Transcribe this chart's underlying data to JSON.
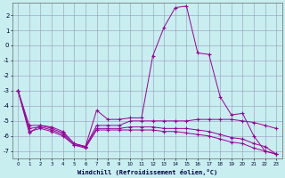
{
  "xlabel": "Windchill (Refroidissement éolien,°C)",
  "background_color": "#c8eef0",
  "grid_color": "#9999bb",
  "line_color": "#990099",
  "xlim": [
    -0.5,
    23.5
  ],
  "ylim": [
    -7.5,
    2.8
  ],
  "yticks": [
    2,
    1,
    0,
    -1,
    -2,
    -3,
    -4,
    -5,
    -6,
    -7
  ],
  "xticks": [
    0,
    1,
    2,
    3,
    4,
    5,
    6,
    7,
    8,
    9,
    10,
    11,
    12,
    13,
    14,
    15,
    16,
    17,
    18,
    19,
    20,
    21,
    22,
    23
  ],
  "line1_x": [
    0,
    1,
    2,
    3,
    4,
    5,
    6,
    7,
    8,
    9,
    10,
    11,
    12,
    13,
    14,
    15,
    16,
    17,
    18,
    19,
    20,
    21,
    22,
    23
  ],
  "line1_y": [
    -3.0,
    -5.8,
    -5.3,
    -5.4,
    -5.7,
    -6.5,
    -6.7,
    -4.3,
    -4.9,
    -4.9,
    -4.8,
    -4.8,
    -0.7,
    1.2,
    2.5,
    2.6,
    -0.5,
    -0.6,
    -3.4,
    -4.6,
    -4.5,
    -6.0,
    -7.0,
    -7.2
  ],
  "line2_x": [
    0,
    1,
    2,
    3,
    4,
    5,
    6,
    7,
    8,
    9,
    10,
    11,
    12,
    13,
    14,
    15,
    16,
    17,
    18,
    19,
    20,
    21,
    22,
    23
  ],
  "line2_y": [
    -3.0,
    -5.3,
    -5.3,
    -5.5,
    -5.8,
    -6.5,
    -6.7,
    -5.3,
    -5.3,
    -5.3,
    -5.0,
    -5.0,
    -5.0,
    -5.0,
    -5.0,
    -5.0,
    -4.9,
    -4.9,
    -4.9,
    -4.9,
    -5.0,
    -5.1,
    -5.3,
    -5.5
  ],
  "line3_x": [
    0,
    1,
    2,
    3,
    4,
    5,
    6,
    7,
    8,
    9,
    10,
    11,
    12,
    13,
    14,
    15,
    16,
    17,
    18,
    19,
    20,
    21,
    22,
    23
  ],
  "line3_y": [
    -3.0,
    -5.5,
    -5.4,
    -5.6,
    -5.9,
    -6.6,
    -6.7,
    -5.5,
    -5.5,
    -5.5,
    -5.4,
    -5.4,
    -5.4,
    -5.5,
    -5.5,
    -5.5,
    -5.6,
    -5.7,
    -5.9,
    -6.1,
    -6.2,
    -6.5,
    -6.7,
    -7.2
  ],
  "line4_x": [
    0,
    1,
    2,
    3,
    4,
    5,
    6,
    7,
    8,
    9,
    10,
    11,
    12,
    13,
    14,
    15,
    16,
    17,
    18,
    19,
    20,
    21,
    22,
    23
  ],
  "line4_y": [
    -3.0,
    -5.7,
    -5.5,
    -5.7,
    -6.0,
    -6.6,
    -6.8,
    -5.6,
    -5.6,
    -5.6,
    -5.6,
    -5.6,
    -5.6,
    -5.7,
    -5.7,
    -5.8,
    -5.9,
    -6.0,
    -6.2,
    -6.4,
    -6.5,
    -6.8,
    -7.0,
    -7.2
  ]
}
